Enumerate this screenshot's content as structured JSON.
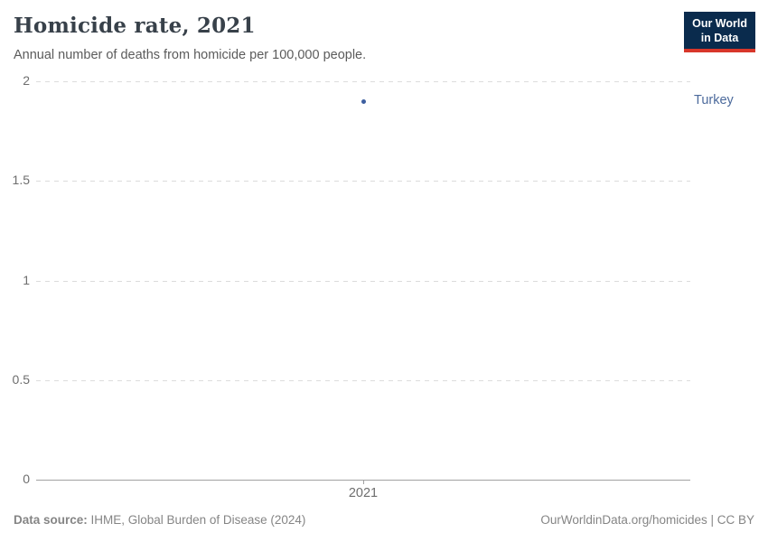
{
  "header": {
    "title": "Homicide rate, 2021",
    "subtitle": "Annual number of deaths from homicide per 100,000 people."
  },
  "logo": {
    "line1": "Our World",
    "line2": "in Data",
    "bg_color": "#0a2b4d",
    "accent_color": "#d8362a"
  },
  "chart_data": {
    "type": "scatter",
    "title": "Homicide rate, 2021",
    "xlabel": "",
    "ylabel": "",
    "series": [
      {
        "name": "Turkey",
        "x": [
          2021
        ],
        "values": [
          1.9
        ],
        "color": "#3d5fa0"
      }
    ],
    "entity_label_color": "#4c6a9c",
    "ylim": [
      0,
      2
    ],
    "y_ticks": [
      {
        "value": 0,
        "label": "0"
      },
      {
        "value": 0.5,
        "label": "0.5"
      },
      {
        "value": 1,
        "label": "1"
      },
      {
        "value": 1.5,
        "label": "1.5"
      },
      {
        "value": 2,
        "label": "2"
      }
    ],
    "x_ticks": [
      {
        "value": 2021,
        "label": "2021"
      }
    ],
    "grid": "horizontal-dashed",
    "legend_position": "right-entity-label"
  },
  "footer": {
    "source_label": "Data source:",
    "source_text": " IHME, Global Burden of Disease (2024)",
    "credit": "OurWorldinData.org/homicides | CC BY"
  }
}
